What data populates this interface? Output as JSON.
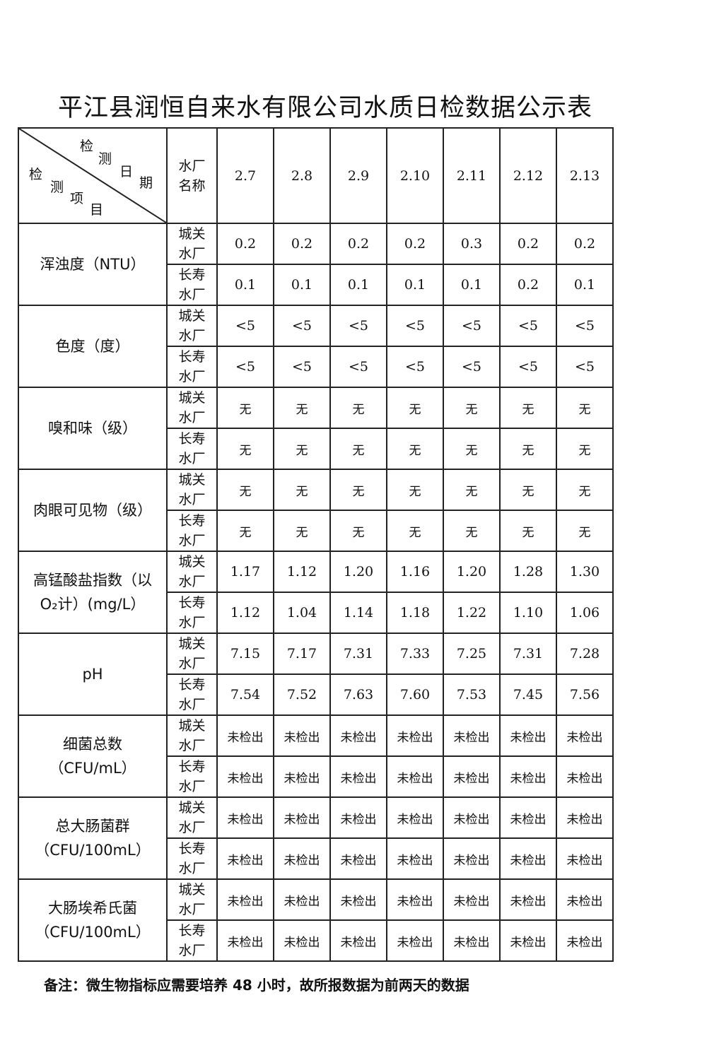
{
  "title": "平江县润恒自来水有限公司水质日检数据公示表",
  "header": {
    "diag_date_chars": [
      "检",
      "测",
      "日",
      "期"
    ],
    "diag_item_chars": [
      "检",
      "测",
      "项",
      "目"
    ],
    "plant_label_lines": [
      "水厂",
      "名称"
    ],
    "dates": [
      "2.7",
      "2.8",
      "2.9",
      "2.10",
      "2.11",
      "2.12",
      "2.13"
    ]
  },
  "plants": [
    [
      "城关",
      "水厂"
    ],
    [
      "长寿",
      "水厂"
    ]
  ],
  "items": [
    {
      "name_lines": [
        "浑浊度（NTU）"
      ],
      "values": [
        [
          "0.2",
          "0.2",
          "0.2",
          "0.2",
          "0.3",
          "0.2",
          "0.2"
        ],
        [
          "0.1",
          "0.1",
          "0.1",
          "0.1",
          "0.1",
          "0.2",
          "0.1"
        ]
      ]
    },
    {
      "name_lines": [
        "色度（度）"
      ],
      "values": [
        [
          "<5",
          "<5",
          "<5",
          "<5",
          "<5",
          "<5",
          "<5"
        ],
        [
          "<5",
          "<5",
          "<5",
          "<5",
          "<5",
          "<5",
          "<5"
        ]
      ]
    },
    {
      "name_lines": [
        "嗅和味（级）"
      ],
      "values": [
        [
          "无",
          "无",
          "无",
          "无",
          "无",
          "无",
          "无"
        ],
        [
          "无",
          "无",
          "无",
          "无",
          "无",
          "无",
          "无"
        ]
      ]
    },
    {
      "name_lines": [
        "肉眼可见物（级）"
      ],
      "values": [
        [
          "无",
          "无",
          "无",
          "无",
          "无",
          "无",
          "无"
        ],
        [
          "无",
          "无",
          "无",
          "无",
          "无",
          "无",
          "无"
        ]
      ]
    },
    {
      "name_lines": [
        "高锰酸盐指数（以",
        "O₂计）(mg/L）"
      ],
      "values": [
        [
          "1.17",
          "1.12",
          "1.20",
          "1.16",
          "1.20",
          "1.28",
          "1.30"
        ],
        [
          "1.12",
          "1.04",
          "1.14",
          "1.18",
          "1.22",
          "1.10",
          "1.06"
        ]
      ]
    },
    {
      "name_lines": [
        "pH"
      ],
      "values": [
        [
          "7.15",
          "7.17",
          "7.31",
          "7.33",
          "7.25",
          "7.31",
          "7.28"
        ],
        [
          "7.54",
          "7.52",
          "7.63",
          "7.60",
          "7.53",
          "7.45",
          "7.56"
        ]
      ]
    },
    {
      "name_lines": [
        "细菌总数",
        "（CFU/mL）"
      ],
      "values": [
        [
          "未检出",
          "未检出",
          "未检出",
          "未检出",
          "未检出",
          "未检出",
          "未检出"
        ],
        [
          "未检出",
          "未检出",
          "未检出",
          "未检出",
          "未检出",
          "未检出",
          "未检出"
        ]
      ]
    },
    {
      "name_lines": [
        "总大肠菌群",
        "（CFU/100mL）"
      ],
      "values": [
        [
          "未检出",
          "未检出",
          "未检出",
          "未检出",
          "未检出",
          "未检出",
          "未检出"
        ],
        [
          "未检出",
          "未检出",
          "未检出",
          "未检出",
          "未检出",
          "未检出",
          "未检出"
        ]
      ]
    },
    {
      "name_lines": [
        "大肠埃希氏菌",
        "（CFU/100mL）"
      ],
      "values": [
        [
          "未检出",
          "未检出",
          "未检出",
          "未检出",
          "未检出",
          "未检出",
          "未检出"
        ],
        [
          "未检出",
          "未检出",
          "未检出",
          "未检出",
          "未检出",
          "未检出",
          "未检出"
        ]
      ]
    }
  ],
  "note": "备注：微生物指标应需要培养 48 小时，故所报数据为前两天的数据"
}
